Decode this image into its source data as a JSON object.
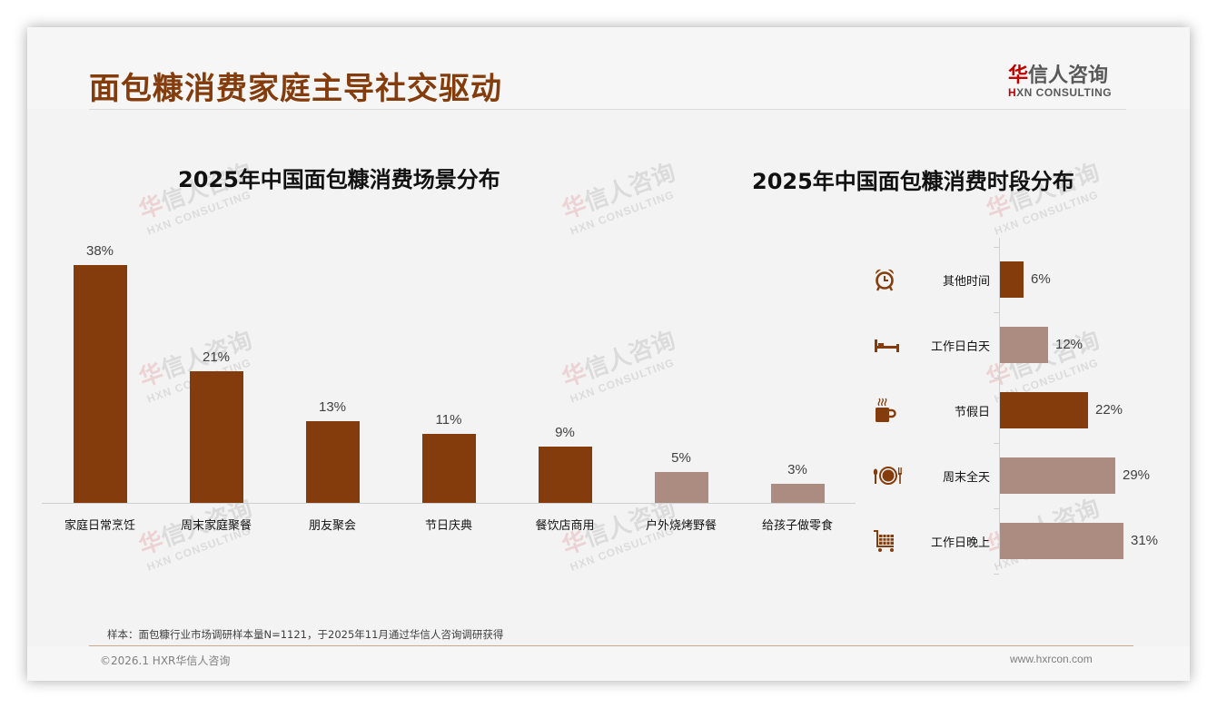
{
  "header": {
    "title": "面包糠消费家庭主导社交驱动",
    "logo_cn_first": "华",
    "logo_cn_rest": "信人咨询",
    "logo_en_first": "H",
    "logo_en_rest": "XN CONSULTING"
  },
  "watermark": {
    "cn_first": "华",
    "cn_rest": "信人咨询",
    "en": "HXN CONSULTING"
  },
  "colors": {
    "brand_brown": "#843c0c",
    "muted_taupe": "#ac8b80",
    "title_brown": "#843c0c",
    "logo_red": "#c00000"
  },
  "chart_data": [
    {
      "type": "bar",
      "title": "2025年中国面包糠消费场景分布",
      "categories": [
        "家庭日常烹饪",
        "周末家庭聚餐",
        "朋友聚会",
        "节日庆典",
        "餐饮店商用",
        "户外烧烤野餐",
        "给孩子做零食"
      ],
      "values": [
        38,
        21,
        13,
        11,
        9,
        5,
        3
      ],
      "value_labels": [
        "38%",
        "21%",
        "13%",
        "11%",
        "9%",
        "5%",
        "3%"
      ],
      "bar_colors": [
        "#843c0c",
        "#843c0c",
        "#843c0c",
        "#843c0c",
        "#843c0c",
        "#ac8b80",
        "#ac8b80"
      ],
      "xlabel": "",
      "ylabel": "",
      "unit": "%",
      "ylim": [
        0,
        40
      ],
      "grid": false,
      "legend": "none"
    },
    {
      "type": "bar",
      "orientation": "horizontal",
      "title": "2025年中国面包糠消费时段分布",
      "categories": [
        "其他时间",
        "工作日白天",
        "节假日",
        "周末全天",
        "工作日晚上"
      ],
      "values": [
        6,
        12,
        22,
        29,
        31
      ],
      "value_labels": [
        "6%",
        "12%",
        "22%",
        "29%",
        "31%"
      ],
      "icons": [
        "alarm-clock-icon",
        "bed-icon",
        "coffee-mug-icon",
        "plate-cutlery-icon",
        "shopping-cart-icon"
      ],
      "bar_colors": [
        "#843c0c",
        "#ac8b80",
        "#843c0c",
        "#ac8b80",
        "#ac8b80"
      ],
      "xlabel": "",
      "ylabel": "",
      "unit": "%",
      "xlim": [
        0,
        35
      ],
      "grid": false,
      "legend": "none"
    }
  ],
  "footer": {
    "footnote": "样本：面包糠行业市场调研样本量N=1121，于2025年11月通过华信人咨询调研获得",
    "copyright": "©2026.1 HXR华信人咨询",
    "website": "www.hxrcon.com"
  }
}
